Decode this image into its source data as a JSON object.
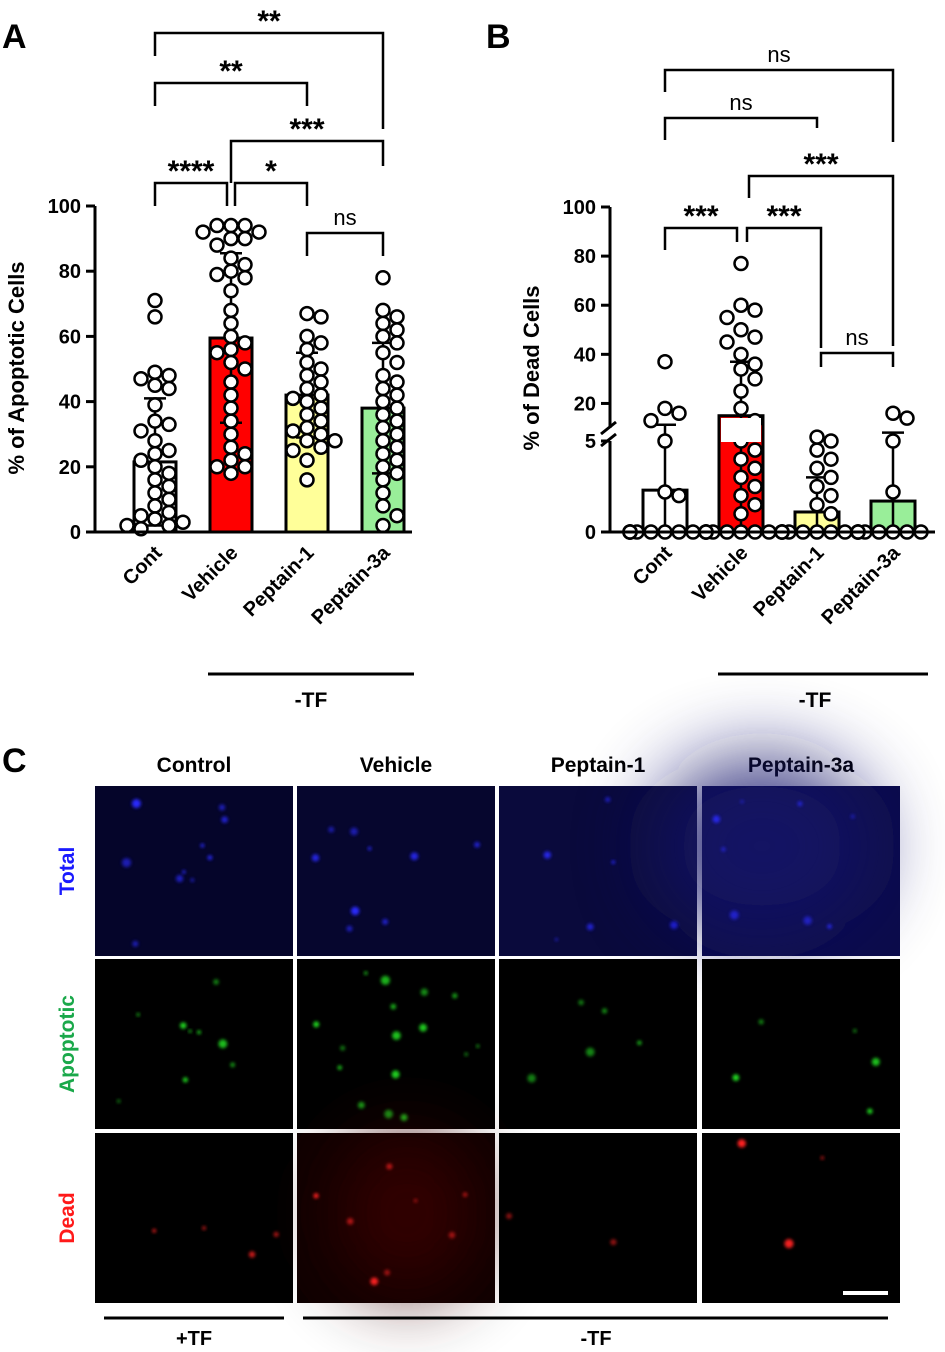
{
  "panels": {
    "a": {
      "letter": "A",
      "ylabel": "% of Apoptotic Cells",
      "yticks": [
        0,
        20,
        40,
        60,
        80,
        100
      ],
      "ylim": [
        0,
        100
      ],
      "group_label": "-TF"
    },
    "b": {
      "letter": "B",
      "ylabel": "% of Dead Cells",
      "yticks_lower": [
        0,
        5
      ],
      "yticks_upper": [
        20,
        40,
        60,
        80,
        100
      ],
      "group_label": "-TF"
    },
    "c": {
      "letter": "C",
      "columns": [
        "Control",
        "Vehicle",
        "Peptain-1",
        "Peptain-3a"
      ],
      "rows": [
        {
          "label": "Total",
          "color": "#1a1aff"
        },
        {
          "label": "Apoptotic",
          "color": "#1aa84a"
        },
        {
          "label": "Dead",
          "color": "#ff1a1a"
        }
      ],
      "group_plus": "+TF",
      "group_minus": "-TF"
    }
  },
  "chart_data": [
    {
      "id": "A",
      "type": "bar",
      "title": "",
      "ylabel": "% of Apoptotic Cells",
      "ylim": [
        0,
        100
      ],
      "categories": [
        "Cont",
        "Vehicle",
        "Peptain-1",
        "Peptain-3a"
      ],
      "colors": [
        "#ffffff",
        "#ff0000",
        "#ffff99",
        "#99ee99"
      ],
      "values": [
        21.5,
        59.5,
        42,
        38
      ],
      "errors": [
        19.5,
        26,
        13,
        20
      ],
      "points": [
        [
          71,
          66,
          49,
          48,
          47,
          45,
          44,
          39,
          34,
          33,
          31,
          28,
          25,
          24,
          22,
          20,
          18,
          16,
          14,
          12,
          10,
          8,
          6,
          5,
          4,
          3,
          2,
          2,
          1
        ],
        [
          94,
          94,
          94,
          92,
          92,
          90,
          90,
          88,
          84,
          82,
          80,
          79,
          78,
          74,
          68,
          64,
          60,
          58,
          56,
          55,
          52,
          50,
          46,
          42,
          38,
          34,
          30,
          26,
          24,
          22,
          20,
          20,
          18
        ],
        [
          67,
          66,
          60,
          58,
          56,
          52,
          50,
          48,
          46,
          44,
          42,
          41,
          40,
          38,
          36,
          34,
          32,
          31,
          30,
          28,
          28,
          26,
          25,
          22,
          16
        ],
        [
          78,
          68,
          66,
          64,
          62,
          60,
          58,
          55,
          52,
          48,
          46,
          44,
          42,
          40,
          38,
          36,
          34,
          32,
          30,
          28,
          26,
          24,
          22,
          20,
          18,
          16,
          12,
          8,
          5,
          2
        ]
      ],
      "comparisons": [
        {
          "from": 0,
          "to": 1,
          "label": "****"
        },
        {
          "from": 1,
          "to": 2,
          "label": "*"
        },
        {
          "from": 2,
          "to": 3,
          "label": "ns"
        },
        {
          "from": 1,
          "to": 3,
          "label": "***"
        },
        {
          "from": 0,
          "to": 2,
          "label": "**"
        },
        {
          "from": 0,
          "to": 3,
          "label": "**"
        }
      ]
    },
    {
      "id": "B",
      "type": "bar",
      "title": "",
      "ylabel": "% of Dead Cells",
      "axis_break": [
        5,
        10
      ],
      "ylim": [
        0,
        100
      ],
      "categories": [
        "Cont",
        "Vehicle",
        "Peptain-1",
        "Peptain-3a"
      ],
      "colors": [
        "#ffffff",
        "#ff0000",
        "#ffff99",
        "#99ee99"
      ],
      "values": [
        2.3,
        15,
        1.1,
        1.7
      ],
      "errors": [
        9,
        22,
        1.9,
        6.5
      ],
      "points": [
        [
          37,
          18,
          16,
          13,
          5,
          2.2,
          2,
          0,
          0,
          0,
          0,
          0,
          0,
          0,
          0,
          0,
          0
        ],
        [
          77,
          60,
          58,
          55,
          50,
          47,
          45,
          40,
          36,
          34,
          30,
          25,
          18,
          13,
          5,
          4.5,
          4,
          3.5,
          3,
          2.5,
          2,
          1.5,
          1,
          0,
          0,
          0,
          0,
          0,
          0,
          0,
          0,
          0,
          0
        ],
        [
          6.5,
          5,
          4.5,
          4,
          3.5,
          3,
          2.5,
          2,
          1.5,
          1,
          0,
          0,
          0,
          0,
          0,
          0,
          0,
          0,
          0,
          0
        ],
        [
          16,
          14,
          5,
          2.2,
          0,
          0,
          0,
          0,
          0,
          0,
          0,
          0,
          0
        ]
      ],
      "comparisons": [
        {
          "from": 0,
          "to": 1,
          "label": "***"
        },
        {
          "from": 1,
          "to": 2,
          "label": "***"
        },
        {
          "from": 2,
          "to": 3,
          "label": "ns"
        },
        {
          "from": 1,
          "to": 3,
          "label": "***"
        },
        {
          "from": 0,
          "to": 2,
          "label": "ns"
        },
        {
          "from": 0,
          "to": 3,
          "label": "ns"
        }
      ]
    }
  ]
}
